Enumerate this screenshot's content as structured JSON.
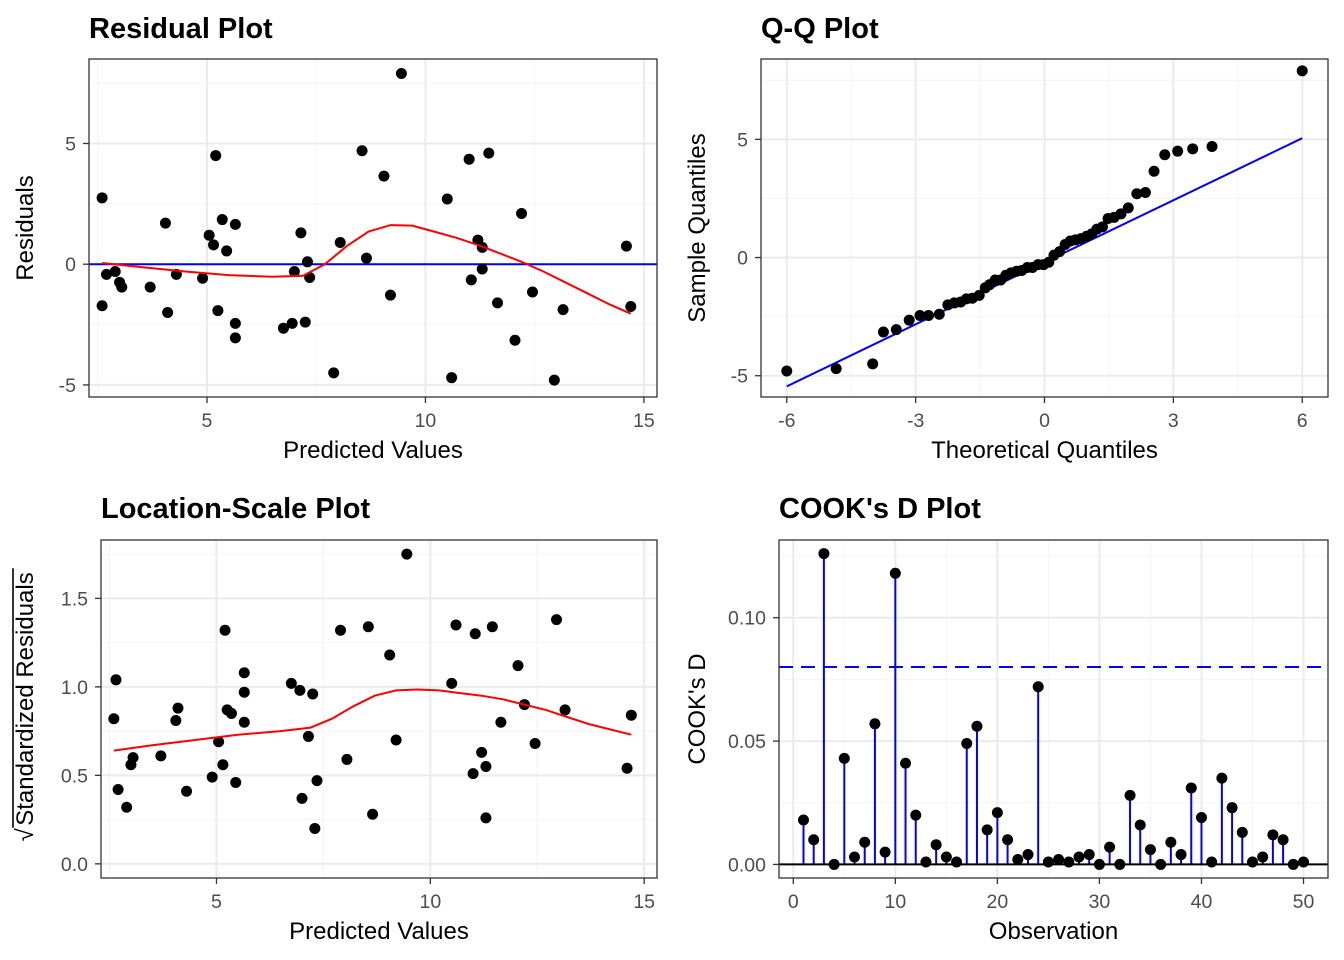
{
  "colors": {
    "points": "#000000",
    "reference_line": "#0000ff",
    "smooth_line": "#ff0000",
    "threshold_line": "#0000ff",
    "grid_major": "#ebebeb",
    "grid_minor": "#f4f4f4",
    "panel_border": "#333333",
    "tick_text": "#4d4d4d"
  },
  "chart_data": [
    {
      "type": "scatter",
      "title": "Residual Plot",
      "xlabel": "Predicted Values",
      "ylabel": "Residuals",
      "xlim": [
        2.3,
        15.3
      ],
      "ylim": [
        -5.5,
        8.5
      ],
      "x_ticks": [
        5,
        10,
        15
      ],
      "x_tick_labels": [
        "5",
        "10",
        "15"
      ],
      "y_ticks": [
        -5,
        0,
        5
      ],
      "y_tick_labels": [
        "-5",
        "0",
        "5"
      ],
      "grid": true,
      "hline": 0,
      "points": [
        [
          2.6,
          2.75
        ],
        [
          2.6,
          -1.72
        ],
        [
          2.7,
          -0.42
        ],
        [
          2.9,
          -0.3
        ],
        [
          3.0,
          -0.75
        ],
        [
          3.05,
          -0.95
        ],
        [
          3.7,
          -0.95
        ],
        [
          4.05,
          1.7
        ],
        [
          4.1,
          -2.0
        ],
        [
          4.3,
          -0.42
        ],
        [
          4.9,
          -0.58
        ],
        [
          5.05,
          1.2
        ],
        [
          5.15,
          0.8
        ],
        [
          5.2,
          4.5
        ],
        [
          5.25,
          -1.92
        ],
        [
          5.35,
          1.85
        ],
        [
          5.45,
          0.55
        ],
        [
          5.65,
          1.65
        ],
        [
          5.65,
          -2.45
        ],
        [
          5.65,
          -3.05
        ],
        [
          6.75,
          -2.65
        ],
        [
          6.95,
          -2.45
        ],
        [
          7.0,
          -0.3
        ],
        [
          7.15,
          1.3
        ],
        [
          7.25,
          -2.4
        ],
        [
          7.3,
          0.1
        ],
        [
          7.35,
          -0.55
        ],
        [
          7.9,
          -4.5
        ],
        [
          8.05,
          0.9
        ],
        [
          8.55,
          4.7
        ],
        [
          8.65,
          0.25
        ],
        [
          9.05,
          3.65
        ],
        [
          9.2,
          -1.28
        ],
        [
          9.45,
          7.9
        ],
        [
          10.5,
          2.7
        ],
        [
          10.6,
          -4.7
        ],
        [
          11.0,
          4.35
        ],
        [
          11.05,
          -0.65
        ],
        [
          11.2,
          1.0
        ],
        [
          11.3,
          0.7
        ],
        [
          11.3,
          -0.2
        ],
        [
          11.45,
          4.6
        ],
        [
          11.65,
          -1.6
        ],
        [
          12.05,
          -3.15
        ],
        [
          12.2,
          2.1
        ],
        [
          12.45,
          -1.15
        ],
        [
          12.95,
          -4.8
        ],
        [
          13.15,
          -1.88
        ],
        [
          14.6,
          0.75
        ],
        [
          14.7,
          -1.75
        ]
      ],
      "smooth": [
        [
          2.6,
          0.05
        ],
        [
          3.5,
          -0.12
        ],
        [
          4.5,
          -0.3
        ],
        [
          5.5,
          -0.45
        ],
        [
          6.5,
          -0.52
        ],
        [
          7.2,
          -0.48
        ],
        [
          7.7,
          0.0
        ],
        [
          8.2,
          0.75
        ],
        [
          8.7,
          1.35
        ],
        [
          9.2,
          1.62
        ],
        [
          9.7,
          1.6
        ],
        [
          10.2,
          1.35
        ],
        [
          10.7,
          1.1
        ],
        [
          11.2,
          0.8
        ],
        [
          11.7,
          0.45
        ],
        [
          12.2,
          0.1
        ],
        [
          12.7,
          -0.3
        ],
        [
          13.2,
          -0.75
        ],
        [
          13.7,
          -1.2
        ],
        [
          14.2,
          -1.65
        ],
        [
          14.7,
          -2.05
        ]
      ]
    },
    {
      "type": "scatter",
      "title": "Q-Q Plot",
      "xlabel": "Theoretical Quantiles",
      "ylabel": "Sample Quantiles",
      "xlim": [
        -6.6,
        6.6
      ],
      "ylim": [
        -5.9,
        8.4
      ],
      "x_ticks": [
        -6,
        -3,
        0,
        3,
        6
      ],
      "x_tick_labels": [
        "-6",
        "-3",
        "0",
        "3",
        "6"
      ],
      "y_ticks": [
        -5,
        0,
        5
      ],
      "y_tick_labels": [
        "-5",
        "0",
        "5"
      ],
      "grid": true,
      "reference_line": [
        [
          -6,
          -5.45
        ],
        [
          6,
          5.05
        ]
      ],
      "points": [
        [
          -6.0,
          -4.8
        ],
        [
          -4.85,
          -4.7
        ],
        [
          -4.0,
          -4.5
        ],
        [
          -3.75,
          -3.15
        ],
        [
          -3.45,
          -3.05
        ],
        [
          -3.15,
          -2.65
        ],
        [
          -2.9,
          -2.45
        ],
        [
          -2.7,
          -2.45
        ],
        [
          -2.45,
          -2.4
        ],
        [
          -2.25,
          -2.0
        ],
        [
          -2.1,
          -1.92
        ],
        [
          -1.95,
          -1.88
        ],
        [
          -1.82,
          -1.75
        ],
        [
          -1.68,
          -1.72
        ],
        [
          -1.52,
          -1.6
        ],
        [
          -1.38,
          -1.28
        ],
        [
          -1.28,
          -1.15
        ],
        [
          -1.15,
          -0.95
        ],
        [
          -1.02,
          -0.95
        ],
        [
          -0.9,
          -0.75
        ],
        [
          -0.78,
          -0.65
        ],
        [
          -0.65,
          -0.58
        ],
        [
          -0.53,
          -0.55
        ],
        [
          -0.4,
          -0.42
        ],
        [
          -0.28,
          -0.42
        ],
        [
          -0.15,
          -0.3
        ],
        [
          -0.02,
          -0.3
        ],
        [
          0.1,
          -0.2
        ],
        [
          0.22,
          0.1
        ],
        [
          0.35,
          0.25
        ],
        [
          0.48,
          0.55
        ],
        [
          0.6,
          0.7
        ],
        [
          0.72,
          0.75
        ],
        [
          0.85,
          0.8
        ],
        [
          0.98,
          0.9
        ],
        [
          1.1,
          1.0
        ],
        [
          1.22,
          1.2
        ],
        [
          1.35,
          1.3
        ],
        [
          1.48,
          1.65
        ],
        [
          1.62,
          1.7
        ],
        [
          1.78,
          1.85
        ],
        [
          1.95,
          2.1
        ],
        [
          2.15,
          2.7
        ],
        [
          2.35,
          2.75
        ],
        [
          2.55,
          3.65
        ],
        [
          2.8,
          4.35
        ],
        [
          3.1,
          4.5
        ],
        [
          3.45,
          4.6
        ],
        [
          3.9,
          4.7
        ],
        [
          6.0,
          7.9
        ]
      ]
    },
    {
      "type": "scatter",
      "title": "Location-Scale Plot",
      "xlabel": "Predicted Values",
      "ylabel": "Standardized Residuals",
      "ylabel_radical": "√",
      "xlim": [
        2.3,
        15.3
      ],
      "ylim": [
        -0.08,
        1.83
      ],
      "x_ticks": [
        5,
        10,
        15
      ],
      "x_tick_labels": [
        "5",
        "10",
        "15"
      ],
      "y_ticks": [
        0.0,
        0.5,
        1.0,
        1.5
      ],
      "y_tick_labels": [
        "0.0",
        "0.5",
        "1.0",
        "1.5"
      ],
      "grid": true,
      "points": [
        [
          2.6,
          0.82
        ],
        [
          2.65,
          1.04
        ],
        [
          2.7,
          0.42
        ],
        [
          2.9,
          0.32
        ],
        [
          3.0,
          0.56
        ],
        [
          3.05,
          0.6
        ],
        [
          3.7,
          0.61
        ],
        [
          4.05,
          0.81
        ],
        [
          4.1,
          0.88
        ],
        [
          4.3,
          0.41
        ],
        [
          4.9,
          0.49
        ],
        [
          5.05,
          0.69
        ],
        [
          5.15,
          0.56
        ],
        [
          5.2,
          1.32
        ],
        [
          5.25,
          0.87
        ],
        [
          5.35,
          0.85
        ],
        [
          5.45,
          0.46
        ],
        [
          5.65,
          1.08
        ],
        [
          5.65,
          0.97
        ],
        [
          5.65,
          0.8
        ],
        [
          6.75,
          1.02
        ],
        [
          6.95,
          0.98
        ],
        [
          7.0,
          0.37
        ],
        [
          7.15,
          0.72
        ],
        [
          7.25,
          0.96
        ],
        [
          7.3,
          0.2
        ],
        [
          7.35,
          0.47
        ],
        [
          7.9,
          1.32
        ],
        [
          8.05,
          0.59
        ],
        [
          8.55,
          1.34
        ],
        [
          8.65,
          0.28
        ],
        [
          9.05,
          1.18
        ],
        [
          9.2,
          0.7
        ],
        [
          9.45,
          1.75
        ],
        [
          10.5,
          1.02
        ],
        [
          10.6,
          1.35
        ],
        [
          11.0,
          0.51
        ],
        [
          11.05,
          1.3
        ],
        [
          11.2,
          0.63
        ],
        [
          11.3,
          0.26
        ],
        [
          11.3,
          0.55
        ],
        [
          11.45,
          1.34
        ],
        [
          11.65,
          0.8
        ],
        [
          12.05,
          1.12
        ],
        [
          12.2,
          0.9
        ],
        [
          12.45,
          0.68
        ],
        [
          12.95,
          1.38
        ],
        [
          13.15,
          0.87
        ],
        [
          14.6,
          0.54
        ],
        [
          14.7,
          0.84
        ]
      ],
      "smooth": [
        [
          2.6,
          0.64
        ],
        [
          3.5,
          0.67
        ],
        [
          4.5,
          0.7
        ],
        [
          5.5,
          0.73
        ],
        [
          6.5,
          0.75
        ],
        [
          7.2,
          0.77
        ],
        [
          7.7,
          0.82
        ],
        [
          8.2,
          0.89
        ],
        [
          8.7,
          0.95
        ],
        [
          9.2,
          0.98
        ],
        [
          9.7,
          0.985
        ],
        [
          10.2,
          0.98
        ],
        [
          10.7,
          0.965
        ],
        [
          11.2,
          0.95
        ],
        [
          11.7,
          0.93
        ],
        [
          12.2,
          0.9
        ],
        [
          12.7,
          0.87
        ],
        [
          13.2,
          0.83
        ],
        [
          13.7,
          0.79
        ],
        [
          14.2,
          0.76
        ],
        [
          14.7,
          0.73
        ]
      ]
    },
    {
      "type": "stem",
      "title": "COOK's D Plot",
      "xlabel": "Observation",
      "ylabel": "COOK's D",
      "xlim": [
        -1.4,
        52.4
      ],
      "ylim": [
        -0.0055,
        0.1315
      ],
      "x_ticks": [
        0,
        10,
        20,
        30,
        40,
        50
      ],
      "x_tick_labels": [
        "0",
        "10",
        "20",
        "30",
        "40",
        "50"
      ],
      "y_ticks": [
        0.0,
        0.05,
        0.1
      ],
      "y_tick_labels": [
        "0.00",
        "0.05",
        "0.10"
      ],
      "grid": true,
      "threshold": 0.08,
      "baseline": 0,
      "observations": [
        1,
        2,
        3,
        4,
        5,
        6,
        7,
        8,
        9,
        10,
        11,
        12,
        13,
        14,
        15,
        16,
        17,
        18,
        19,
        20,
        21,
        22,
        23,
        24,
        25,
        26,
        27,
        28,
        29,
        30,
        31,
        32,
        33,
        34,
        35,
        36,
        37,
        38,
        39,
        40,
        41,
        42,
        43,
        44,
        45,
        46,
        47,
        48,
        49,
        50
      ],
      "values": [
        0.018,
        0.01,
        0.126,
        0.0,
        0.043,
        0.003,
        0.009,
        0.057,
        0.005,
        0.118,
        0.041,
        0.02,
        0.001,
        0.008,
        0.003,
        0.001,
        0.049,
        0.056,
        0.014,
        0.021,
        0.01,
        0.002,
        0.004,
        0.072,
        0.001,
        0.002,
        0.001,
        0.003,
        0.004,
        0.0,
        0.007,
        0.0,
        0.028,
        0.016,
        0.006,
        0.0,
        0.009,
        0.004,
        0.031,
        0.019,
        0.001,
        0.035,
        0.023,
        0.013,
        0.001,
        0.003,
        0.012,
        0.01,
        0.0,
        0.001
      ]
    }
  ]
}
